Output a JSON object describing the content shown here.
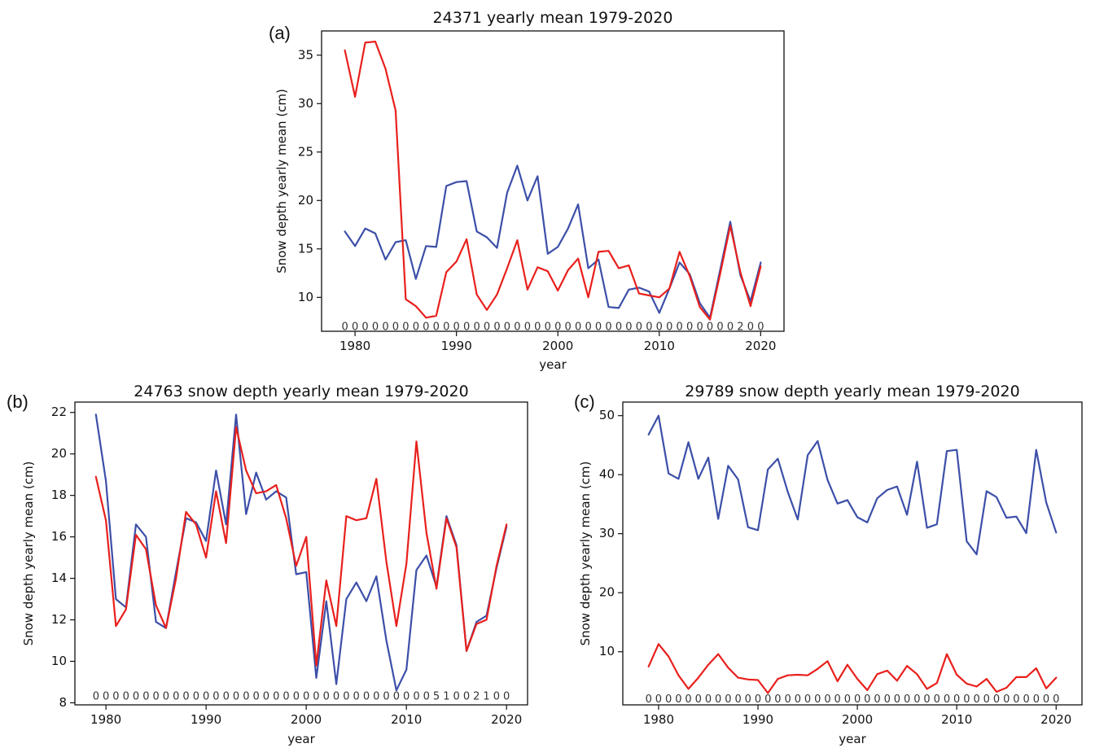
{
  "chart_data": [
    {
      "panel_label": "(a)",
      "type": "line",
      "title": "24371 yearly mean 1979-2020",
      "xlabel": "year",
      "ylabel": "Snow depth yearly mean (cm)",
      "xlim": [
        1976.7,
        2022.3
      ],
      "ylim": [
        6.5,
        37.5
      ],
      "xticks": [
        1980,
        1990,
        2000,
        2010,
        2020
      ],
      "yticks": [
        10,
        15,
        20,
        25,
        30,
        35
      ],
      "grid": false,
      "annotation_row": {
        "y": 6.9,
        "x_start": 1979,
        "labels": [
          "0",
          "0",
          "0",
          "0",
          "0",
          "0",
          "0",
          "0",
          "0",
          "0",
          "0",
          "0",
          "0",
          "0",
          "0",
          "0",
          "0",
          "0",
          "0",
          "0",
          "0",
          "0",
          "0",
          "0",
          "0",
          "0",
          "0",
          "0",
          "0",
          "0",
          "0",
          "0",
          "0",
          "0",
          "0",
          "0",
          "0",
          "0",
          "0",
          "2",
          "0",
          "0"
        ]
      },
      "x": [
        1979,
        1980,
        1981,
        1982,
        1983,
        1984,
        1985,
        1986,
        1987,
        1988,
        1989,
        1990,
        1991,
        1992,
        1993,
        1994,
        1995,
        1996,
        1997,
        1998,
        1999,
        2000,
        2001,
        2002,
        2003,
        2004,
        2005,
        2006,
        2007,
        2008,
        2009,
        2010,
        2011,
        2012,
        2013,
        2014,
        2015,
        2016,
        2017,
        2018,
        2019,
        2020
      ],
      "series": [
        {
          "color": "#3c4fa8",
          "values": [
            16.8,
            15.3,
            17.1,
            16.6,
            13.9,
            15.7,
            15.9,
            11.9,
            15.3,
            15.2,
            21.5,
            21.9,
            22.0,
            16.8,
            16.2,
            15.1,
            20.8,
            23.6,
            20.0,
            22.5,
            14.5,
            15.2,
            17.1,
            19.6,
            13.0,
            13.9,
            9.0,
            8.9,
            10.8,
            11.0,
            10.6,
            8.4,
            10.9,
            13.6,
            12.4,
            9.4,
            7.9,
            12.8,
            17.8,
            12.3,
            9.6,
            13.6
          ]
        },
        {
          "color": "#e8201c",
          "values": [
            35.5,
            30.7,
            36.3,
            36.4,
            33.6,
            29.3,
            9.8,
            9.1,
            7.9,
            8.1,
            12.6,
            13.7,
            16.0,
            10.3,
            8.7,
            10.3,
            13.0,
            15.9,
            10.8,
            13.1,
            12.7,
            10.7,
            12.8,
            14.0,
            10.0,
            14.7,
            14.8,
            13.0,
            13.3,
            10.4,
            10.2,
            10.0,
            10.9,
            14.7,
            12.2,
            9.0,
            7.7,
            12.4,
            17.4,
            12.6,
            9.1,
            13.2
          ]
        }
      ]
    },
    {
      "panel_label": "(b)",
      "type": "line",
      "title": "24763 snow depth yearly mean 1979-2020",
      "xlabel": "year",
      "ylabel": "Snow depth yearly mean (cm)",
      "xlim": [
        1976.9,
        2022.1
      ],
      "ylim": [
        7.9,
        22.5
      ],
      "xticks": [
        1980,
        1990,
        2000,
        2010,
        2020
      ],
      "yticks": [
        8,
        10,
        12,
        14,
        16,
        18,
        20,
        22
      ],
      "grid": false,
      "annotation_row": {
        "y": 8.3,
        "x_start": 1979,
        "labels": [
          "0",
          "0",
          "0",
          "0",
          "0",
          "0",
          "0",
          "0",
          "0",
          "0",
          "0",
          "0",
          "0",
          "0",
          "0",
          "0",
          "0",
          "0",
          "0",
          "0",
          "0",
          "0",
          "0",
          "0",
          "0",
          "0",
          "0",
          "0",
          "0",
          "0",
          "0",
          "0",
          "0",
          "0",
          "5",
          "1",
          "0",
          "0",
          "2",
          "1",
          "0",
          "0"
        ]
      },
      "x": [
        1979,
        1980,
        1981,
        1982,
        1983,
        1984,
        1985,
        1986,
        1987,
        1988,
        1989,
        1990,
        1991,
        1992,
        1993,
        1994,
        1995,
        1996,
        1997,
        1998,
        1999,
        2000,
        2001,
        2002,
        2003,
        2004,
        2005,
        2006,
        2007,
        2008,
        2009,
        2010,
        2011,
        2012,
        2013,
        2014,
        2015,
        2016,
        2017,
        2018,
        2019,
        2020
      ],
      "series": [
        {
          "color": "#3c4fa8",
          "values": [
            21.9,
            18.7,
            13.0,
            12.6,
            16.6,
            16.0,
            11.9,
            11.6,
            14.3,
            16.9,
            16.7,
            15.8,
            19.2,
            16.6,
            21.9,
            17.1,
            19.1,
            17.8,
            18.2,
            17.9,
            14.2,
            14.3,
            9.2,
            12.9,
            8.9,
            13.0,
            13.8,
            12.9,
            14.1,
            11.0,
            8.6,
            9.6,
            14.4,
            15.1,
            13.6,
            17.0,
            15.6,
            10.5,
            11.9,
            12.2,
            14.5,
            16.5
          ]
        },
        {
          "color": "#e8201c",
          "values": [
            18.9,
            16.8,
            11.7,
            12.5,
            16.1,
            15.4,
            12.7,
            11.6,
            14.0,
            17.2,
            16.6,
            15.0,
            18.2,
            15.7,
            21.3,
            19.2,
            18.1,
            18.2,
            18.5,
            16.9,
            14.6,
            16.0,
            9.8,
            13.9,
            11.7,
            17.0,
            16.8,
            16.9,
            18.8,
            14.8,
            11.7,
            14.7,
            20.6,
            16.2,
            13.5,
            16.9,
            15.5,
            10.5,
            11.8,
            12.0,
            14.6,
            16.6
          ]
        }
      ]
    },
    {
      "panel_label": "(c)",
      "type": "line",
      "title": "29789 snow depth yearly mean 1979-2020",
      "xlabel": "year",
      "ylabel": "Snow depth yearly mean (cm)",
      "xlim": [
        1976.4,
        2022.6
      ],
      "ylim": [
        1.0,
        52.3
      ],
      "xticks": [
        1980,
        1990,
        2000,
        2010,
        2020
      ],
      "yticks": [
        10,
        20,
        30,
        40,
        50
      ],
      "grid": false,
      "annotation_row": {
        "y": 1.9,
        "x_start": 1979,
        "labels": [
          "0",
          "0",
          "0",
          "0",
          "0",
          "0",
          "0",
          "0",
          "0",
          "0",
          "0",
          "0",
          "0",
          "0",
          "0",
          "0",
          "0",
          "0",
          "0",
          "0",
          "0",
          "0",
          "0",
          "0",
          "0",
          "0",
          "0",
          "0",
          "0",
          "0",
          "0",
          "0",
          "0",
          "0",
          "0",
          "0",
          "0",
          "0",
          "0",
          "0",
          "0",
          "0"
        ]
      },
      "x": [
        1979,
        1980,
        1981,
        1982,
        1983,
        1984,
        1985,
        1986,
        1987,
        1988,
        1989,
        1990,
        1991,
        1992,
        1993,
        1994,
        1995,
        1996,
        1997,
        1998,
        1999,
        2000,
        2001,
        2002,
        2003,
        2004,
        2005,
        2006,
        2007,
        2008,
        2009,
        2010,
        2011,
        2012,
        2013,
        2014,
        2015,
        2016,
        2017,
        2018,
        2019,
        2020
      ],
      "series": [
        {
          "color": "#3c4fa8",
          "values": [
            46.8,
            50.0,
            40.2,
            39.3,
            45.5,
            39.3,
            42.9,
            32.5,
            41.5,
            39.2,
            31.1,
            30.6,
            40.9,
            42.7,
            37.1,
            32.4,
            43.3,
            45.7,
            39.1,
            35.1,
            35.7,
            32.8,
            31.9,
            36.0,
            37.4,
            38.0,
            33.2,
            42.2,
            31.0,
            31.6,
            44.0,
            44.2,
            28.7,
            26.5,
            37.2,
            36.2,
            32.7,
            32.9,
            30.1,
            44.2,
            35.3,
            30.2
          ]
        },
        {
          "color": "#e8201c",
          "values": [
            7.5,
            11.3,
            9.2,
            6.0,
            3.7,
            5.6,
            7.8,
            9.6,
            7.3,
            5.6,
            5.3,
            5.2,
            3.0,
            5.4,
            6.0,
            6.1,
            6.0,
            7.1,
            8.4,
            5.0,
            7.8,
            5.4,
            3.5,
            6.2,
            6.8,
            5.1,
            7.6,
            6.2,
            3.7,
            4.7,
            9.6,
            6.1,
            4.6,
            4.1,
            5.4,
            3.2,
            3.9,
            5.7,
            5.7,
            7.2,
            3.8,
            5.6
          ]
        }
      ]
    }
  ]
}
